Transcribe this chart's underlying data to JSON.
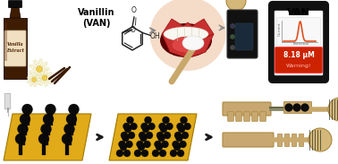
{
  "bg_color": "#ffffff",
  "text_vanillin": "Vanillin\n(VAN)",
  "text_van": "VAN",
  "text_warning": "Warning!",
  "text_conc": "8.18 μM",
  "text_vanilla": "Vanilla\nExtract",
  "arrow_color": "#1a1a1a",
  "phone_bg": "#1a1a1a",
  "phone_screen": "#ffffff",
  "curve_color": "#e05020",
  "warning_box_color": "#cc2200",
  "lollipop_stick": "#c8a86b",
  "lollipop_head": "#d4b87a",
  "gold_sheet": "#d4a820",
  "gold_sheet_edge": "#a07800",
  "electrode_black": "#111111",
  "molecule_color": "#222222",
  "skin_color": "#f0c8a0",
  "lip_color": "#c83030",
  "bottle_color": "#3d1c02",
  "bottle_label": "#f5e8d0",
  "chem_fs": 6,
  "van_fs": 8,
  "small_fs": 4,
  "warn_fs": 4.5,
  "conc_fs": 5.5
}
